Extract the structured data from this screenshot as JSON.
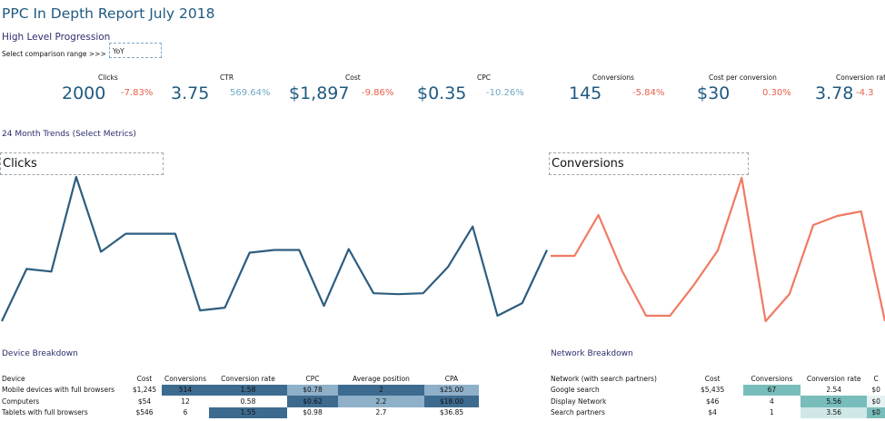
{
  "report": {
    "title": "PPC In Depth Report July 2018",
    "section_high_level": "High Level Progression",
    "comparison_label": "Select comparison range >>>",
    "comparison_value": "YoY",
    "section_trends": "24 Month Trends (Select Metrics)",
    "section_device": "Device Breakdown",
    "section_network": "Network Breakdown"
  },
  "kpis": [
    {
      "label": "Clicks",
      "value": "2000",
      "change": "-7.83%",
      "dir": "neg"
    },
    {
      "label": "CTR",
      "value": "3.75",
      "change": "569.64%",
      "dir": "pos"
    },
    {
      "label": "Cost",
      "value": "$1,897",
      "change": "-9.86%",
      "dir": "neg"
    },
    {
      "label": "CPC",
      "value": "$0.35",
      "change": "-10.26%",
      "dir": "pos"
    },
    {
      "label": "Conversions",
      "value": "145",
      "change": "-5.84%",
      "dir": "neg"
    },
    {
      "label": "Cost per conversion",
      "value": "$30",
      "change": "0.30%",
      "dir": "neg"
    },
    {
      "label": "Conversion rate",
      "value": "3.78",
      "change": "-4.3",
      "dir": "neg"
    }
  ],
  "charts": {
    "left_title": "Clicks",
    "right_title": "Conversions",
    "left_color": "#2e5d7f",
    "right_color": "#f07a62"
  },
  "chart_data": [
    {
      "type": "line",
      "title": "Clicks",
      "series": [
        {
          "values": [
            0,
            58,
            55,
            160,
            77,
            97,
            97,
            97,
            12,
            15,
            76,
            79,
            79,
            17,
            80,
            31,
            30,
            31,
            60,
            105,
            6,
            20,
            79
          ]
        }
      ]
    },
    {
      "type": "line",
      "title": "Conversions",
      "series": [
        {
          "values": [
            72,
            72,
            117,
            55,
            6,
            6,
            40,
            78,
            158,
            0,
            30,
            106,
            116,
            121,
            0
          ]
        }
      ]
    }
  ],
  "device_table": {
    "headers": [
      "Device",
      "Cost",
      "Conversions",
      "Conversion rate",
      "CPC",
      "Average position",
      "CPA"
    ],
    "rows": [
      [
        "Mobile devices with full browsers",
        "$1,245",
        "514",
        "1.58",
        "$0.78",
        "2",
        "$25.00"
      ],
      [
        "Computers",
        "$54",
        "12",
        "0.58",
        "$0.62",
        "2.2",
        "$18.00"
      ],
      [
        "Tablets with full browsers",
        "$546",
        "6",
        "1.55",
        "$0.98",
        "2.7",
        "$36.85"
      ]
    ]
  },
  "network_table": {
    "headers": [
      "Network (with search partners)",
      "Cost",
      "Conversions",
      "Conversion rate",
      "C"
    ],
    "rows": [
      [
        "Google search",
        "$5,435",
        "67",
        "2.54",
        "$0"
      ],
      [
        "Display Network",
        "$46",
        "4",
        "5.56",
        "$0"
      ],
      [
        "Search partners",
        "$4",
        "1",
        "3.56",
        "$0"
      ]
    ]
  }
}
